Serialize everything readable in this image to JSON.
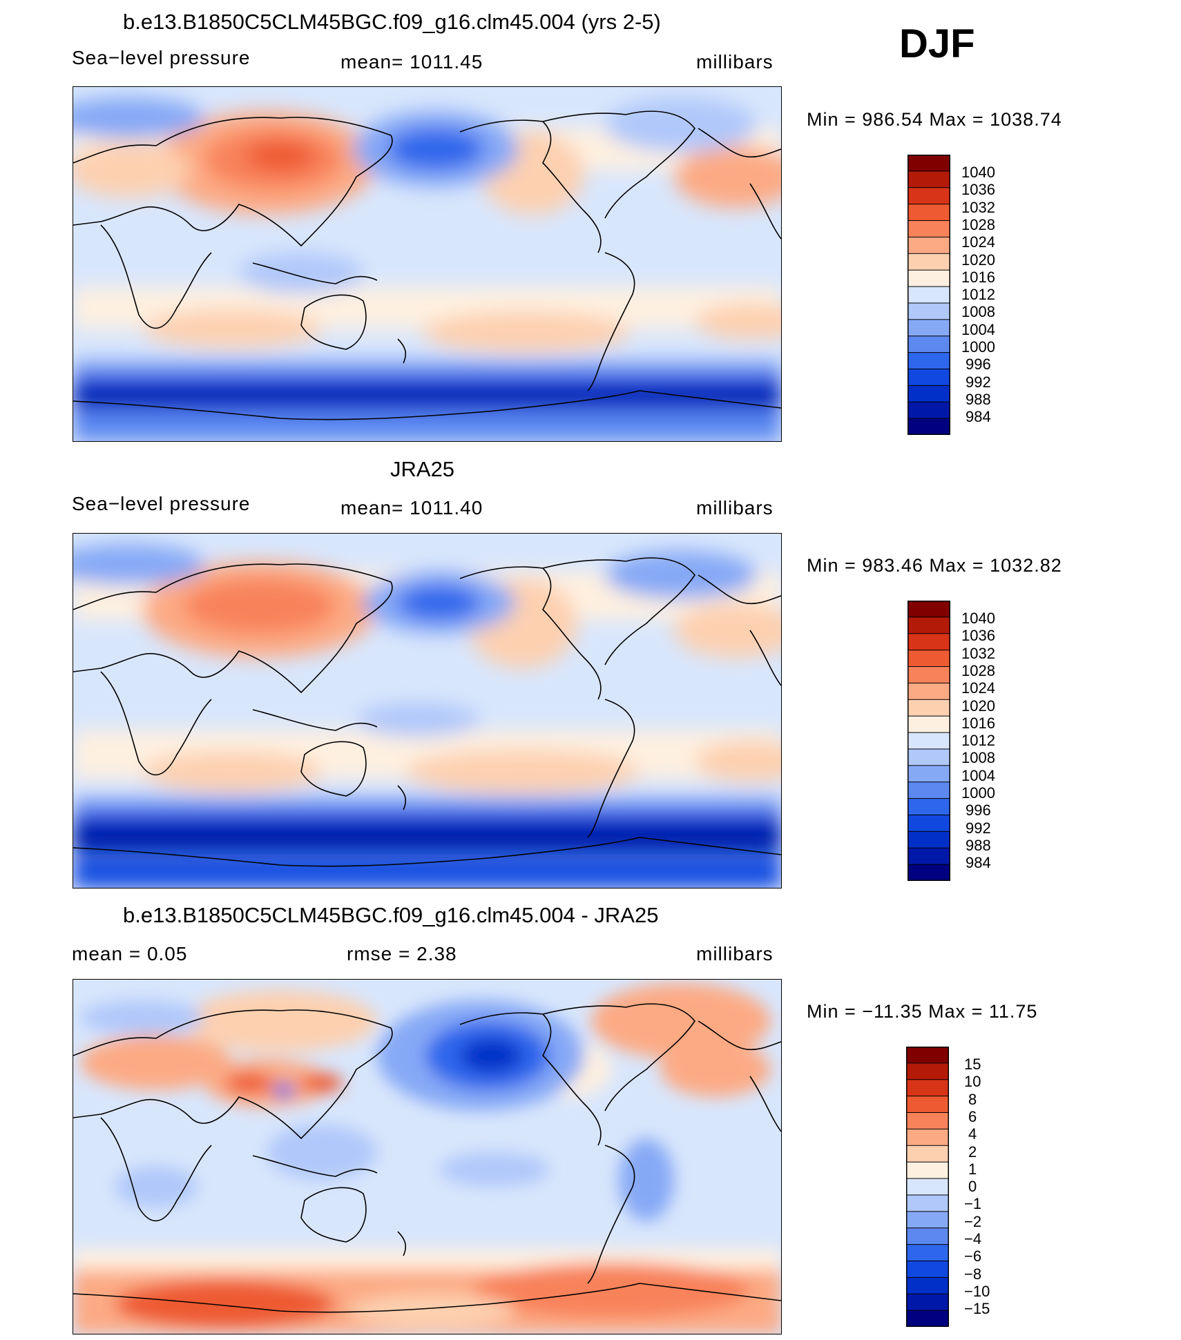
{
  "season": "DJF",
  "palettes": {
    "abs": [
      "#000080",
      "#0018a8",
      "#0030c8",
      "#1048e0",
      "#2e66ec",
      "#5c88f0",
      "#86a9f6",
      "#b0c8fa",
      "#d8e6fc",
      "#fef0e0",
      "#fdd0b0",
      "#fcaa84",
      "#f8825a",
      "#ee5a32",
      "#d83418",
      "#b41a08",
      "#800000"
    ],
    "diff": [
      "#000080",
      "#0018a8",
      "#0030c8",
      "#1048e0",
      "#2e66ec",
      "#5c88f0",
      "#86a9f6",
      "#b0c8fa",
      "#d8e6fc",
      "#fef0e0",
      "#fdd0b0",
      "#fcaa84",
      "#f8825a",
      "#ee5a32",
      "#d83418",
      "#b41a08",
      "#800000"
    ]
  },
  "panels": [
    {
      "title": "b.e13.B1850C5CLM45BGC.f09_g16.clm45.004 (yrs 2-5)",
      "left": "Sea−level pressure",
      "center": "mean=  1011.45",
      "right": "millibars",
      "minmax": "Min  =  986.54  Max  =  1038.74",
      "palette": "abs",
      "colorbar_labels": [
        "1040",
        "1036",
        "1032",
        "1028",
        "1024",
        "1020",
        "1016",
        "1012",
        "1008",
        "1004",
        "1000",
        "996",
        "992",
        "988",
        "984"
      ]
    },
    {
      "title": "JRA25",
      "left": "Sea−level pressure",
      "center": "mean=  1011.40",
      "right": "millibars",
      "minmax": "Min  =  983.46  Max  =  1032.82",
      "palette": "abs",
      "colorbar_labels": [
        "1040",
        "1036",
        "1032",
        "1028",
        "1024",
        "1020",
        "1016",
        "1012",
        "1008",
        "1004",
        "1000",
        "996",
        "992",
        "988",
        "984"
      ]
    },
    {
      "title": "b.e13.B1850C5CLM45BGC.f09_g16.clm45.004 - JRA25",
      "left": "mean  =      0.05",
      "center": "rmse  =      2.38",
      "right": "millibars",
      "minmax": "Min  =  −11.35  Max  =     11.75",
      "palette": "diff",
      "colorbar_labels": [
        "15",
        "10",
        "8",
        "6",
        "4",
        "2",
        "1",
        "0",
        "−1",
        "−2",
        "−4",
        "−6",
        "−8",
        "−10",
        "−15"
      ]
    }
  ]
}
